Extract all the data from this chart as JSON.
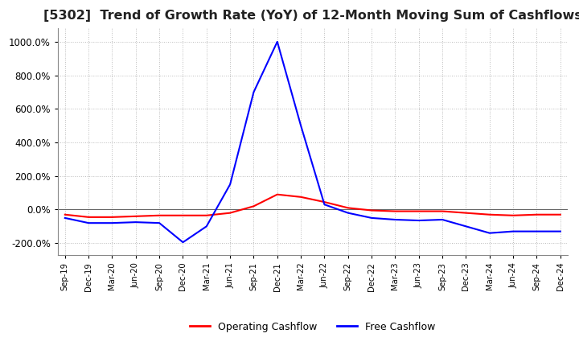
{
  "title": "[5302]  Trend of Growth Rate (YoY) of 12-Month Moving Sum of Cashflows",
  "title_fontsize": 11.5,
  "ylim": [
    -270,
    1080
  ],
  "yticks": [
    -200,
    0,
    200,
    400,
    600,
    800,
    1000
  ],
  "grid_color": "#bbbbbb",
  "background_color": "#ffffff",
  "operating_color": "#ff0000",
  "free_color": "#0000ff",
  "dates": [
    "Sep-19",
    "Dec-19",
    "Mar-20",
    "Jun-20",
    "Sep-20",
    "Dec-20",
    "Mar-21",
    "Jun-21",
    "Sep-21",
    "Dec-21",
    "Mar-22",
    "Jun-22",
    "Sep-22",
    "Dec-22",
    "Mar-23",
    "Jun-23",
    "Sep-23",
    "Dec-23",
    "Mar-24",
    "Jun-24",
    "Sep-24",
    "Dec-24"
  ],
  "operating_cashflow": [
    -30,
    -45,
    -45,
    -40,
    -35,
    -35,
    -35,
    -20,
    20,
    90,
    75,
    45,
    10,
    -5,
    -10,
    -10,
    -10,
    -20,
    -30,
    -35,
    -30,
    -30
  ],
  "free_cashflow": [
    -50,
    -80,
    -80,
    -75,
    -80,
    -195,
    -100,
    150,
    700,
    1000,
    500,
    30,
    -20,
    -50,
    -60,
    -65,
    -60,
    -100,
    -140,
    -130,
    -130,
    -130
  ]
}
